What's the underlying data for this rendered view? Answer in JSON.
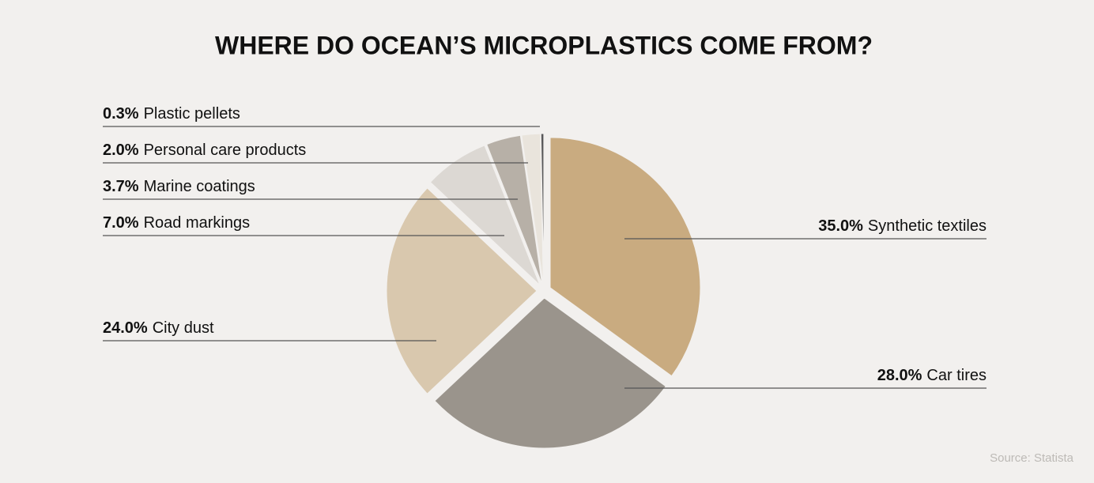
{
  "chart_data": {
    "type": "pie",
    "title": "WHERE DO OCEAN’S MICROPLASTICS COME FROM?",
    "categories": [
      "Synthetic textiles",
      "Car tires",
      "City dust",
      "Road markings",
      "Marine coatings",
      "Personal care products",
      "Plastic pellets"
    ],
    "values": [
      35,
      28,
      24,
      7,
      3.7,
      2,
      0.3
    ],
    "value_labels": [
      "35.0%",
      "28.0%",
      "24.0%",
      "7.0%",
      "3.7%",
      "2.0%",
      "0.3%"
    ],
    "colors": [
      "#c9ab80",
      "#9a948c",
      "#d9c8ae",
      "#dcd8d3",
      "#b7b0a7",
      "#e9e4dc",
      "#58585a"
    ],
    "source": "Source: Statista"
  }
}
